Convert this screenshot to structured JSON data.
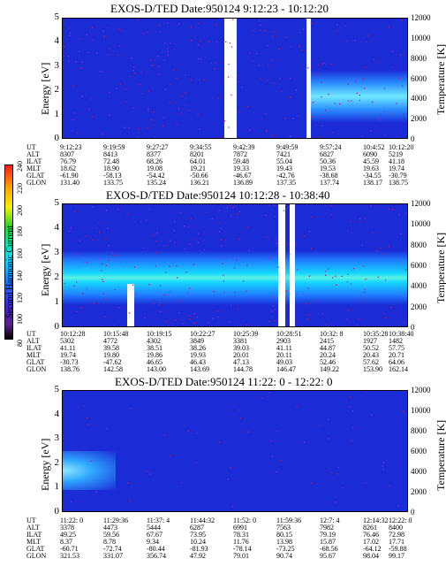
{
  "colorbar": {
    "label": "Second Harmonic Current",
    "ticks": [
      "240",
      "220",
      "200",
      "180",
      "160",
      "140",
      "120",
      "100",
      "80"
    ]
  },
  "chart_data": [
    {
      "type": "heatmap",
      "title": "EXOS-D/TED   Date:950124   9:12:23 - 10:12:20",
      "ylabel": "Energy [eV]",
      "y2label": "Temperature [K]",
      "ylim": [
        0,
        5
      ],
      "y2lim": [
        0,
        12000
      ],
      "yticks": [
        "0",
        "1",
        "2",
        "3",
        "4",
        "5"
      ],
      "y2ticks": [
        "0",
        "2000",
        "4000",
        "6000",
        "8000",
        "10000",
        "12000"
      ],
      "orbit_labels": [
        "UT",
        "ALT",
        "ILAT",
        "MLT",
        "GLAT",
        "GLON"
      ],
      "orbit": [
        [
          "9:12:23",
          "8307",
          "76.79",
          "18.62",
          "-61.90",
          "131.40"
        ],
        [
          "9:19:59",
          "8413",
          "72.48",
          "18.90",
          "-58.13",
          "133.75"
        ],
        [
          "9:27:27",
          "8377",
          "68.26",
          "19.08",
          "-54.42",
          "135.24"
        ],
        [
          "9:34:55",
          "8201",
          "64.01",
          "19.21",
          "-50.66",
          "136.21"
        ],
        [
          "9:42:39",
          "7872",
          "59.48",
          "19.33",
          "-46.67",
          "136.89"
        ],
        [
          "9:49:59",
          "7421",
          "55.04",
          "19.43",
          "-42.76",
          "137.35"
        ],
        [
          "9:57:24",
          "6827",
          "50.36",
          "19.53",
          "-38.68",
          "137.74"
        ],
        [
          "10:4:52",
          "6090",
          "45.59",
          "19.63",
          "-34.55",
          "138.17"
        ],
        [
          "10:12:20",
          "5219",
          "41.18",
          "19.74",
          "-30.79",
          "138.75"
        ]
      ]
    },
    {
      "type": "heatmap",
      "title": "EXOS-D/TED   Date:950124   10:12:28 - 10:38:40",
      "ylabel": "Energy [eV]",
      "y2label": "Temperature [K]",
      "ylim": [
        0,
        5
      ],
      "y2lim": [
        0,
        12000
      ],
      "yticks": [
        "0",
        "1",
        "2",
        "3",
        "4",
        "5"
      ],
      "y2ticks": [
        "0",
        "2000",
        "4000",
        "6000",
        "8000",
        "10000",
        "12000"
      ],
      "orbit_labels": [
        "UT",
        "ALT",
        "ILAT",
        "MLT",
        "GLAT",
        "GLON"
      ],
      "orbit": [
        [
          "10:12:28",
          "5302",
          "41.11",
          "19.74",
          "-30.73",
          "138.76"
        ],
        [
          "10:15:48",
          "4772",
          "39.58",
          "19.80",
          "-47.62",
          "142.58"
        ],
        [
          "10:19:15",
          "4302",
          "38.51",
          "19.86",
          "46.65",
          "143.00"
        ],
        [
          "10:22:27",
          "3849",
          "38.26",
          "19.93",
          "46.43",
          "143.69"
        ],
        [
          "10:25:39",
          "3381",
          "39.03",
          "20.01",
          "47.13",
          "144.78"
        ],
        [
          "10:28:51",
          "2903",
          "41.11",
          "20.11",
          "49.03",
          "146.47"
        ],
        [
          "10:32: 8",
          "2415",
          "44.87",
          "20.24",
          "52.46",
          "149.22"
        ],
        [
          "10:35:28",
          "1927",
          "50.52",
          "20.43",
          "57.62",
          "153.90"
        ],
        [
          "10:38:40",
          "1482",
          "57.75",
          "20.71",
          "64.06",
          "162.14"
        ]
      ]
    },
    {
      "type": "heatmap",
      "title": "EXOS-D/TED   Date:950124   11:22: 0 - 12:22: 0",
      "ylabel": "Energy [eV]",
      "y2label": "Temperature [K]",
      "ylim": [
        0,
        5
      ],
      "y2lim": [
        0,
        12000
      ],
      "yticks": [
        "0",
        "1",
        "2",
        "3",
        "4",
        "5"
      ],
      "y2ticks": [
        "0",
        "2000",
        "4000",
        "6000",
        "8000",
        "10000",
        "12000"
      ],
      "orbit_labels": [
        "UT",
        "ALT",
        "ILAT",
        "MLT",
        "GLAT",
        "GLON"
      ],
      "orbit": [
        [
          "11:22: 0",
          "3378",
          "49.25",
          "8.37",
          "-60.71",
          "321.53"
        ],
        [
          "11:29:36",
          "4473",
          "59.56",
          "8.78",
          "-72.74",
          "331.07"
        ],
        [
          "11:37: 4",
          "5444",
          "67.67",
          "9.34",
          "-80.44",
          "356.74"
        ],
        [
          "11:44:32",
          "6287",
          "73.95",
          "10.24",
          "-81.93",
          "47.92"
        ],
        [
          "11:52: 0",
          "6991",
          "78.31",
          "11.76",
          "-78.14",
          "79.01"
        ],
        [
          "11:59:36",
          "7563",
          "80.15",
          "13.98",
          "-73.25",
          "90.74"
        ],
        [
          "12:7: 4",
          "7982",
          "79.19",
          "15.87",
          "-68.56",
          "95.67"
        ],
        [
          "12:14:32",
          "8261",
          "76.46",
          "17.02",
          "-64.12",
          "98.04"
        ],
        [
          "12:22: 0",
          "8400",
          "72.98",
          "17.71",
          "-59.88",
          "99.17"
        ]
      ]
    }
  ]
}
